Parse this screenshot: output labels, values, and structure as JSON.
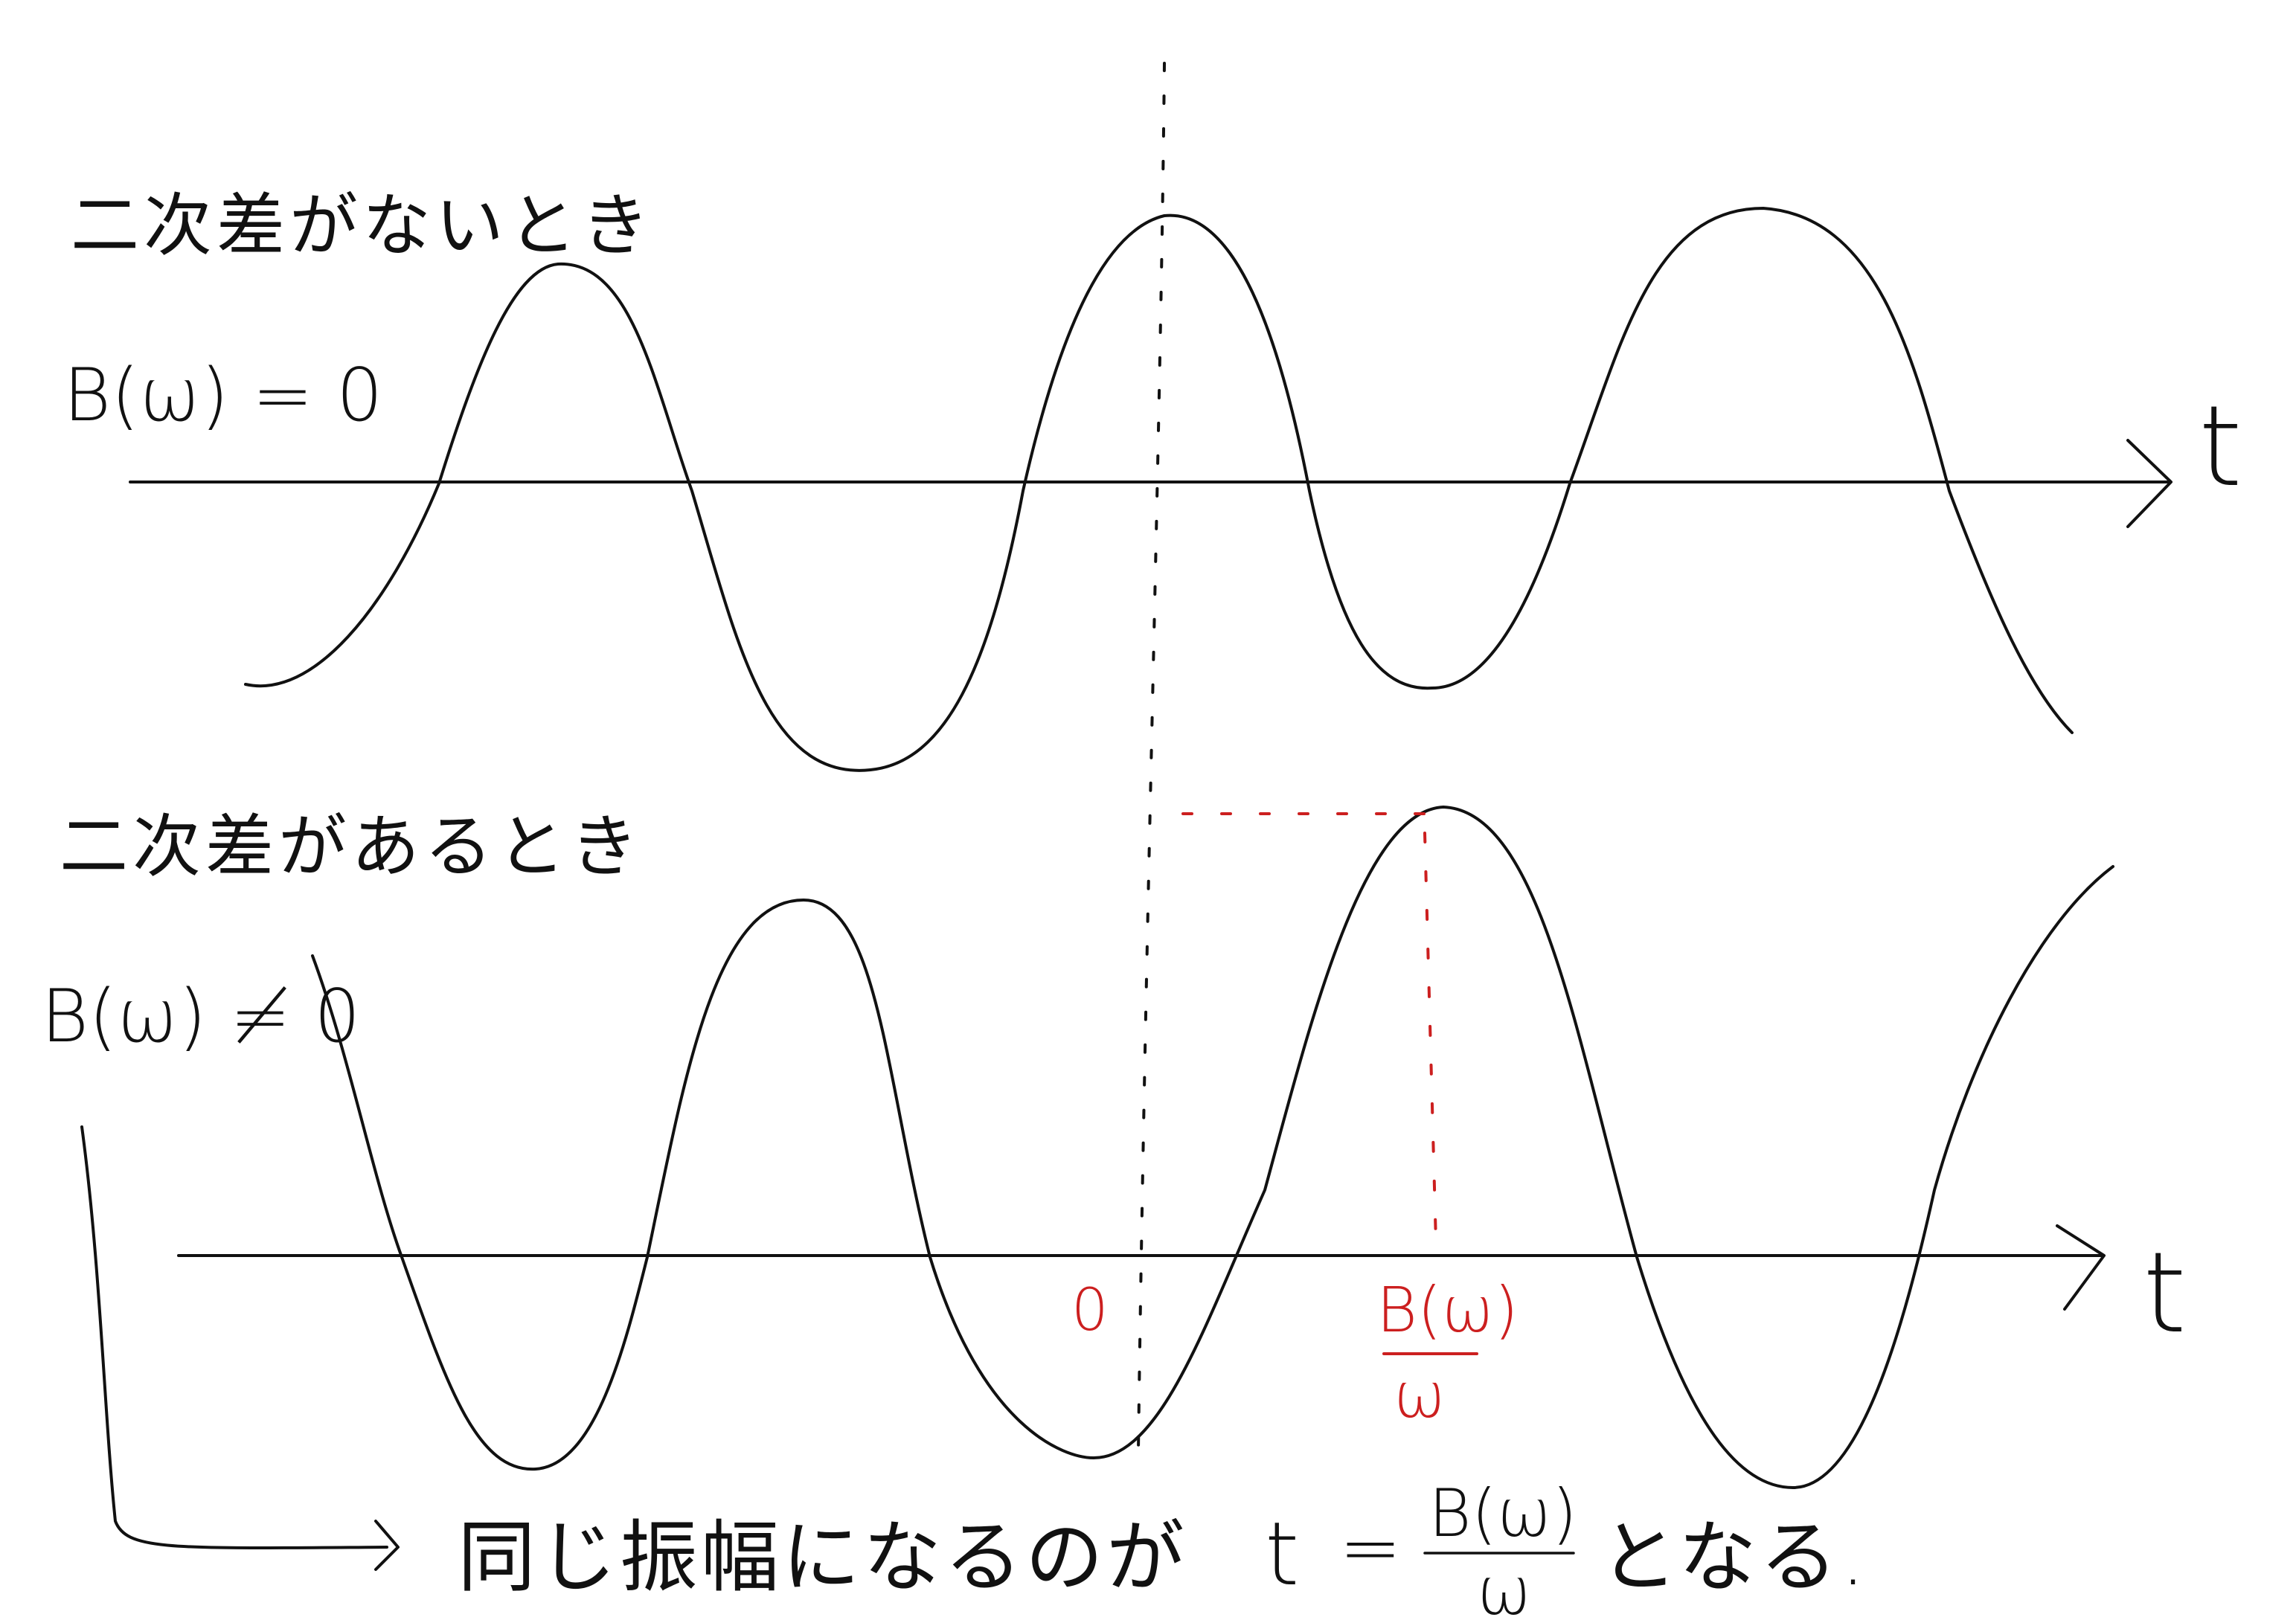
{
  "top_panel": {
    "title": "二次差がないとき",
    "condition": "B(ω) = 0",
    "axis_label": "t"
  },
  "bottom_panel": {
    "title": "二次差があるとき",
    "condition": "B(ω) ≠ 0",
    "axis_label": "t",
    "origin_label": "0",
    "shift_numerator": "B(ω)",
    "shift_denominator": "ω"
  },
  "conclusion": {
    "text_before": "同じ振幅になるのが",
    "t_label": "t",
    "equals": "=",
    "fraction_numerator": "B(ω)",
    "fraction_denominator": "ω",
    "text_after": "となる."
  },
  "colors": {
    "ink": "#111111",
    "annotation": "#cc1f1f"
  }
}
